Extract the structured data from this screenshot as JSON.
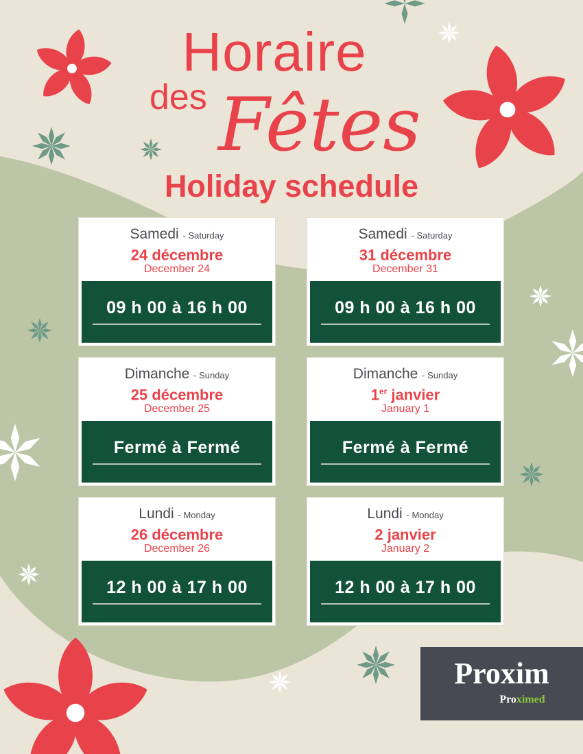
{
  "header": {
    "line1": "Horaire",
    "line2": "des",
    "line3": "Fêtes",
    "line4": "Holiday schedule"
  },
  "cards": [
    {
      "day_fr": "Samedi",
      "day_en": "- Saturday",
      "date_fr": "24 décembre",
      "date_sup": "",
      "date_en": "December 24",
      "hours": "09 h 00 à 16 h 00"
    },
    {
      "day_fr": "Samedi",
      "day_en": "- Saturday",
      "date_fr": "31 décembre",
      "date_sup": "",
      "date_en": "December 31",
      "hours": "09 h 00 à 16 h 00"
    },
    {
      "day_fr": "Dimanche",
      "day_en": "- Sunday",
      "date_fr": "25 décembre",
      "date_sup": "",
      "date_en": "December 25",
      "hours": "Fermé à Fermé"
    },
    {
      "day_fr": "Dimanche",
      "day_en": "- Sunday",
      "date_fr": "1",
      "date_sup": "er",
      "date_rest": " janvier",
      "date_en": "January 1",
      "hours": "Fermé à Fermé"
    },
    {
      "day_fr": "Lundi",
      "day_en": "- Monday",
      "date_fr": "26 décembre",
      "date_sup": "",
      "date_en": "December 26",
      "hours": "12 h 00 à 17 h 00"
    },
    {
      "day_fr": "Lundi",
      "day_en": "- Monday",
      "date_fr": "2 janvier",
      "date_sup": "",
      "date_en": "January 2",
      "hours": "12 h 00 à 17 h 00"
    }
  ],
  "logo": {
    "main": "Proxim",
    "sub_a": "Pro",
    "sub_b": "ximed"
  },
  "colors": {
    "red": "#e8434a",
    "dark_green": "#12513a",
    "sage": "#bcc6a7",
    "beige": "#ebe5d8",
    "logo_bg": "#474a52",
    "lime": "#8cc63f"
  }
}
